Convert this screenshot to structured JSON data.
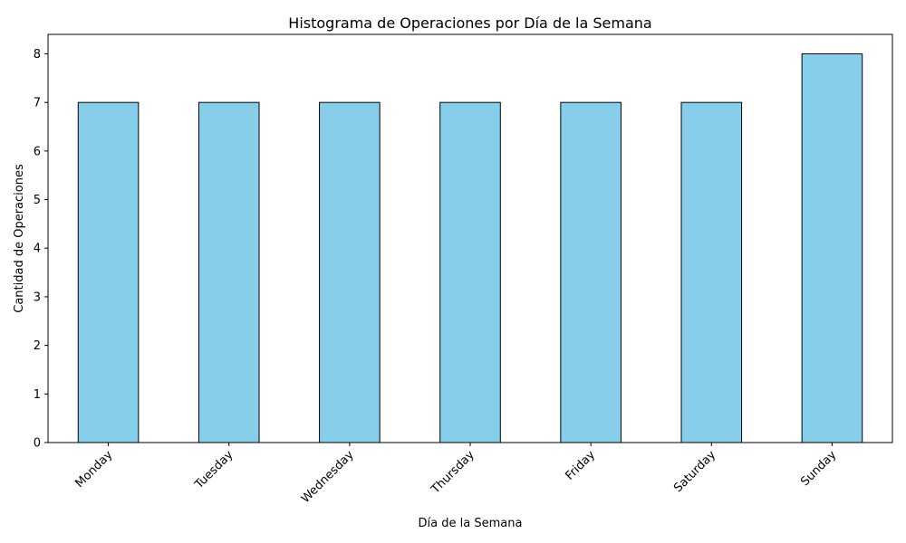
{
  "chart_data": {
    "type": "bar",
    "title": "Histograma de Operaciones por Día de la Semana",
    "xlabel": "Día de la Semana",
    "ylabel": "Cantidad de Operaciones",
    "categories": [
      "Monday",
      "Tuesday",
      "Wednesday",
      "Thursday",
      "Friday",
      "Saturday",
      "Sunday"
    ],
    "values": [
      7,
      7,
      7,
      7,
      7,
      7,
      8
    ],
    "ylim": [
      0,
      8.4
    ],
    "yticks": [
      0,
      1,
      2,
      3,
      4,
      5,
      6,
      7,
      8
    ],
    "grid": false,
    "legend": "none",
    "colors": {
      "bar_fill": "#87CEEB",
      "bar_edge": "#000000",
      "axis": "#000000"
    }
  }
}
